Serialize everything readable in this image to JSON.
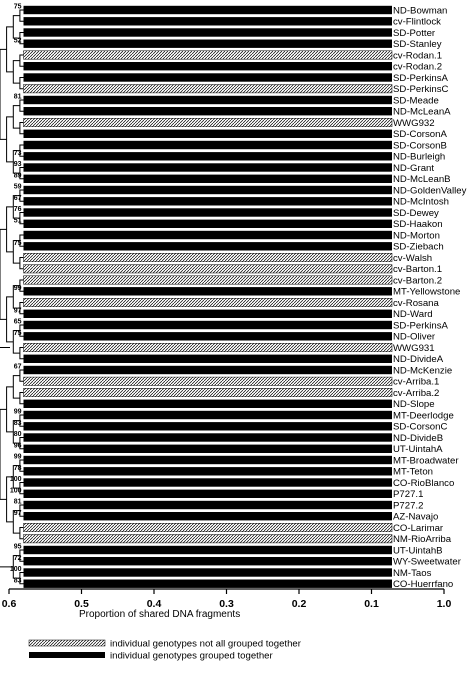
{
  "chart_data": {
    "type": "bar",
    "xlabel": "Proportion of shared DNA fragments",
    "xlim": [
      0.6,
      1.0
    ],
    "xticks": [
      "0.6",
      "0.5",
      "0.4",
      "0.3",
      "0.2",
      "0.1",
      "1.0"
    ],
    "legend": {
      "position": "bottom-left",
      "items": [
        {
          "label": "individual genotypes not all grouped together",
          "style": "hatched"
        },
        {
          "label": "individual genotypes grouped together",
          "style": "solid"
        }
      ]
    },
    "leaves": [
      {
        "name": "ND-Bowman",
        "bar_start": 0.58,
        "grouped": true,
        "bootstrap": "75"
      },
      {
        "name": "cv-Flintlock",
        "bar_start": 0.58,
        "grouped": true,
        "bootstrap": ""
      },
      {
        "name": "SD-Potter",
        "bar_start": 0.58,
        "grouped": true,
        "bootstrap": ""
      },
      {
        "name": "SD-Stanley",
        "bar_start": 0.58,
        "grouped": true,
        "bootstrap": "52"
      },
      {
        "name": "cv-Rodan.1",
        "bar_start": 0.58,
        "grouped": false,
        "bootstrap": ""
      },
      {
        "name": "cv-Rodan.2",
        "bar_start": 0.58,
        "grouped": true,
        "bootstrap": ""
      },
      {
        "name": "SD-PerkinsA",
        "bar_start": 0.58,
        "grouped": true,
        "bootstrap": ""
      },
      {
        "name": "SD-PerkinsC",
        "bar_start": 0.58,
        "grouped": false,
        "bootstrap": ""
      },
      {
        "name": "SD-Meade",
        "bar_start": 0.58,
        "grouped": true,
        "bootstrap": "81"
      },
      {
        "name": "ND-McLeanA",
        "bar_start": 0.58,
        "grouped": true,
        "bootstrap": ""
      },
      {
        "name": "WWG932",
        "bar_start": 0.58,
        "grouped": false,
        "bootstrap": ""
      },
      {
        "name": "SD-CorsonA",
        "bar_start": 0.58,
        "grouped": true,
        "bootstrap": ""
      },
      {
        "name": "SD-CorsonB",
        "bar_start": 0.58,
        "grouped": true,
        "bootstrap": ""
      },
      {
        "name": "ND-Burleigh",
        "bar_start": 0.58,
        "grouped": true,
        "bootstrap": "73"
      },
      {
        "name": "ND-Grant",
        "bar_start": 0.58,
        "grouped": true,
        "bootstrap": "93"
      },
      {
        "name": "ND-McLeanB",
        "bar_start": 0.58,
        "grouped": true,
        "bootstrap": "89"
      },
      {
        "name": "ND-GoldenValley",
        "bar_start": 0.58,
        "grouped": true,
        "bootstrap": "59"
      },
      {
        "name": "ND-McIntosh",
        "bar_start": 0.58,
        "grouped": true,
        "bootstrap": "67"
      },
      {
        "name": "SD-Dewey",
        "bar_start": 0.58,
        "grouped": true,
        "bootstrap": "76"
      },
      {
        "name": "SD-Haakon",
        "bar_start": 0.58,
        "grouped": true,
        "bootstrap": "51"
      },
      {
        "name": "ND-Morton",
        "bar_start": 0.58,
        "grouped": true,
        "bootstrap": ""
      },
      {
        "name": "SD-Ziebach",
        "bar_start": 0.58,
        "grouped": true,
        "bootstrap": "75"
      },
      {
        "name": "cv-Walsh",
        "bar_start": 0.58,
        "grouped": false,
        "bootstrap": ""
      },
      {
        "name": "cv-Barton.1",
        "bar_start": 0.58,
        "grouped": false,
        "bootstrap": ""
      },
      {
        "name": "cv-Barton.2",
        "bar_start": 0.58,
        "grouped": false,
        "bootstrap": ""
      },
      {
        "name": "MT-Yellowstone",
        "bar_start": 0.58,
        "grouped": true,
        "bootstrap": "99"
      },
      {
        "name": "cv-Rosana",
        "bar_start": 0.58,
        "grouped": false,
        "bootstrap": ""
      },
      {
        "name": "ND-Ward",
        "bar_start": 0.58,
        "grouped": true,
        "bootstrap": "97"
      },
      {
        "name": "SD-PerkinsA",
        "bar_start": 0.58,
        "grouped": true,
        "bootstrap": "65"
      },
      {
        "name": "ND-Oliver",
        "bar_start": 0.58,
        "grouped": true,
        "bootstrap": "75"
      },
      {
        "name": "WWG931",
        "bar_start": 0.58,
        "grouped": false,
        "bootstrap": ""
      },
      {
        "name": "ND-DivideA",
        "bar_start": 0.58,
        "grouped": true,
        "bootstrap": ""
      },
      {
        "name": "ND-McKenzie",
        "bar_start": 0.58,
        "grouped": true,
        "bootstrap": "67"
      },
      {
        "name": "cv-Arriba.1",
        "bar_start": 0.58,
        "grouped": false,
        "bootstrap": ""
      },
      {
        "name": "cv-Arriba.2",
        "bar_start": 0.58,
        "grouped": false,
        "bootstrap": ""
      },
      {
        "name": "ND-Slope",
        "bar_start": 0.58,
        "grouped": true,
        "bootstrap": ""
      },
      {
        "name": "MT-Deerlodge",
        "bar_start": 0.58,
        "grouped": true,
        "bootstrap": "99"
      },
      {
        "name": "SD-CorsonC",
        "bar_start": 0.58,
        "grouped": true,
        "bootstrap": "83"
      },
      {
        "name": "ND-DivideB",
        "bar_start": 0.58,
        "grouped": true,
        "bootstrap": "80"
      },
      {
        "name": "UT-UintahA",
        "bar_start": 0.58,
        "grouped": true,
        "bootstrap": "96"
      },
      {
        "name": "MT-Broadwater",
        "bar_start": 0.58,
        "grouped": true,
        "bootstrap": "99"
      },
      {
        "name": "MT-Teton",
        "bar_start": 0.58,
        "grouped": true,
        "bootstrap": "78"
      },
      {
        "name": "CO-RioBlanco",
        "bar_start": 0.58,
        "grouped": true,
        "bootstrap": "100"
      },
      {
        "name": "P727.1",
        "bar_start": 0.58,
        "grouped": true,
        "bootstrap": "100"
      },
      {
        "name": "P727.2",
        "bar_start": 0.58,
        "grouped": true,
        "bootstrap": "81"
      },
      {
        "name": "AZ-Navajo",
        "bar_start": 0.58,
        "grouped": true,
        "bootstrap": "97"
      },
      {
        "name": "CO-Larimar",
        "bar_start": 0.58,
        "grouped": false,
        "bootstrap": ""
      },
      {
        "name": "NM-RioArriba",
        "bar_start": 0.58,
        "grouped": false,
        "bootstrap": ""
      },
      {
        "name": "UT-UintahB",
        "bar_start": 0.58,
        "grouped": true,
        "bootstrap": "95"
      },
      {
        "name": "WY-Sweetwater",
        "bar_start": 0.58,
        "grouped": true,
        "bootstrap": "72"
      },
      {
        "name": "NM-Taos",
        "bar_start": 0.58,
        "grouped": true,
        "bootstrap": "100"
      },
      {
        "name": "CO-Huerrfano",
        "bar_start": 0.58,
        "grouped": true,
        "bootstrap": "83"
      }
    ],
    "extra_bootstrap": [
      {
        "value": "93",
        "node_x": 0.5,
        "at_leaf": 43.5
      }
    ]
  }
}
